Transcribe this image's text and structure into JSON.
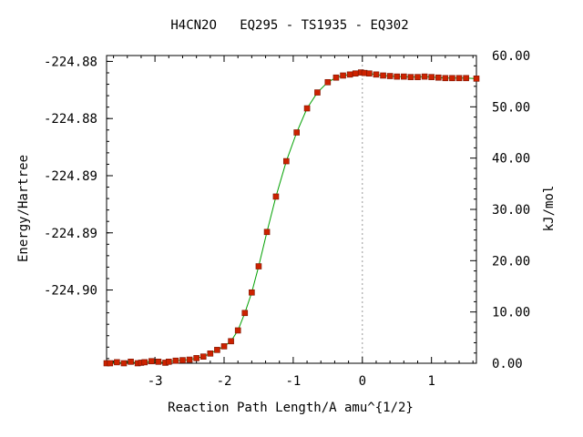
{
  "chart_data": {
    "type": "line",
    "title": "H4CN2O   EQ295 - TS1935 - EQ302",
    "xlabel": "Reaction Path Length/A amu^{1/2}",
    "ylabel": "Energy/Hartree",
    "y2label": "kJ/mol",
    "xlim": [
      -3.7,
      1.65
    ],
    "ylim": [
      -224.9016,
      -224.8806
    ],
    "y2lim": [
      0,
      60
    ],
    "x_ticks": [
      -3,
      -2,
      -1,
      0,
      1
    ],
    "x_tick_labels": [
      "-3",
      "-2",
      "-1",
      "0",
      "1"
    ],
    "y_ticks": [
      -224.881,
      -224.8849,
      -224.8888,
      -224.8927,
      -224.8966
    ],
    "y_tick_labels": [
      "-224.88",
      "-224.88",
      "-224.89",
      "-224.89",
      "-224.90"
    ],
    "y2_ticks": [
      0,
      10,
      20,
      30,
      40,
      50,
      60
    ],
    "y2_tick_labels": [
      "0.00",
      "10.00",
      "20.00",
      "30.00",
      "40.00",
      "50.00",
      "60.00"
    ],
    "ts_x": 0,
    "series": [
      {
        "color": "#cc2200",
        "line_color": "#00a000",
        "x": [
          -3.7,
          -3.65,
          -3.55,
          -3.45,
          -3.35,
          -3.25,
          -3.2,
          -3.15,
          -3.05,
          -2.95,
          -2.85,
          -2.8,
          -2.7,
          -2.6,
          -2.5,
          -2.4,
          -2.3,
          -2.2,
          -2.1,
          -2.0,
          -1.9,
          -1.8,
          -1.7,
          -1.6,
          -1.5,
          -1.38,
          -1.25,
          -1.1,
          -0.95,
          -0.8,
          -0.65,
          -0.5,
          -0.38,
          -0.28,
          -0.18,
          -0.1,
          -0.02,
          0.03,
          0.1,
          0.2,
          0.3,
          0.4,
          0.5,
          0.6,
          0.7,
          0.8,
          0.9,
          1.0,
          1.1,
          1.2,
          1.3,
          1.4,
          1.5,
          1.65
        ],
        "y_kj": [
          0.0,
          0.0,
          0.2,
          0.0,
          0.3,
          0.0,
          0.1,
          0.2,
          0.4,
          0.3,
          0.1,
          0.3,
          0.5,
          0.6,
          0.7,
          1.0,
          1.3,
          1.9,
          2.6,
          3.3,
          4.3,
          6.4,
          9.8,
          13.8,
          18.9,
          25.6,
          32.5,
          39.4,
          45.0,
          49.7,
          52.8,
          54.8,
          55.7,
          56.1,
          56.3,
          56.5,
          56.7,
          56.6,
          56.5,
          56.3,
          56.1,
          56.0,
          55.9,
          55.9,
          55.8,
          55.8,
          55.9,
          55.8,
          55.7,
          55.6,
          55.6,
          55.6,
          55.6,
          55.5
        ]
      }
    ]
  }
}
